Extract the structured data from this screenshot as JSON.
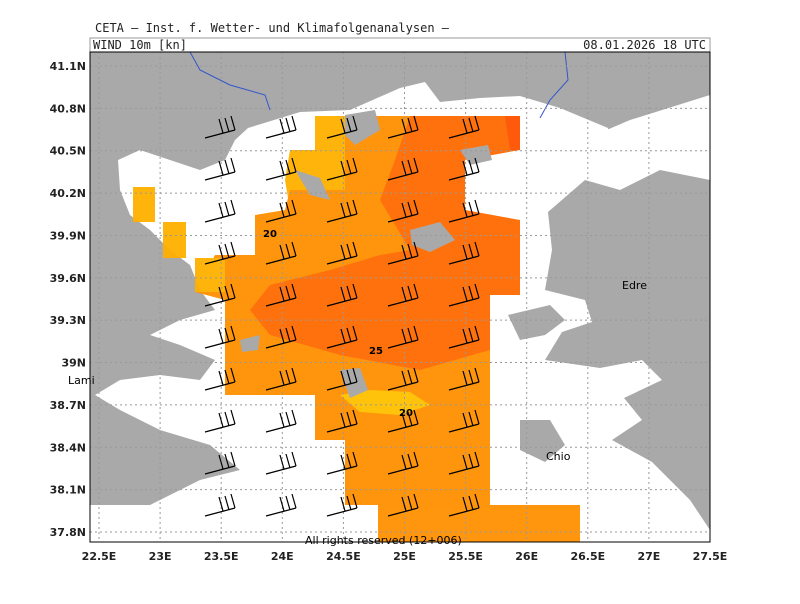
{
  "header": {
    "institute": "CETA – Inst. f. Wetter- und Klimafolgenanalysen –",
    "parameter": "WIND_10m_[kn]",
    "valid": "08.01.2026 18 UTC"
  },
  "axes": {
    "lon_labels": [
      "22.5E",
      "23E",
      "23.5E",
      "24E",
      "24.5E",
      "25E",
      "25.5E",
      "26E",
      "26.5E",
      "27E",
      "27.5E"
    ],
    "lat_labels": [
      "41.1N",
      "40.8N",
      "40.5N",
      "40.2N",
      "39.9N",
      "39.6N",
      "39.3N",
      "39N",
      "38.7N",
      "38.4N",
      "38.1N",
      "37.8N"
    ]
  },
  "contour_labels": [
    "20",
    "25",
    "20"
  ],
  "places": [
    "Edre",
    "Lami",
    "Chio"
  ],
  "footer": "All rights reserved (12+006)"
}
